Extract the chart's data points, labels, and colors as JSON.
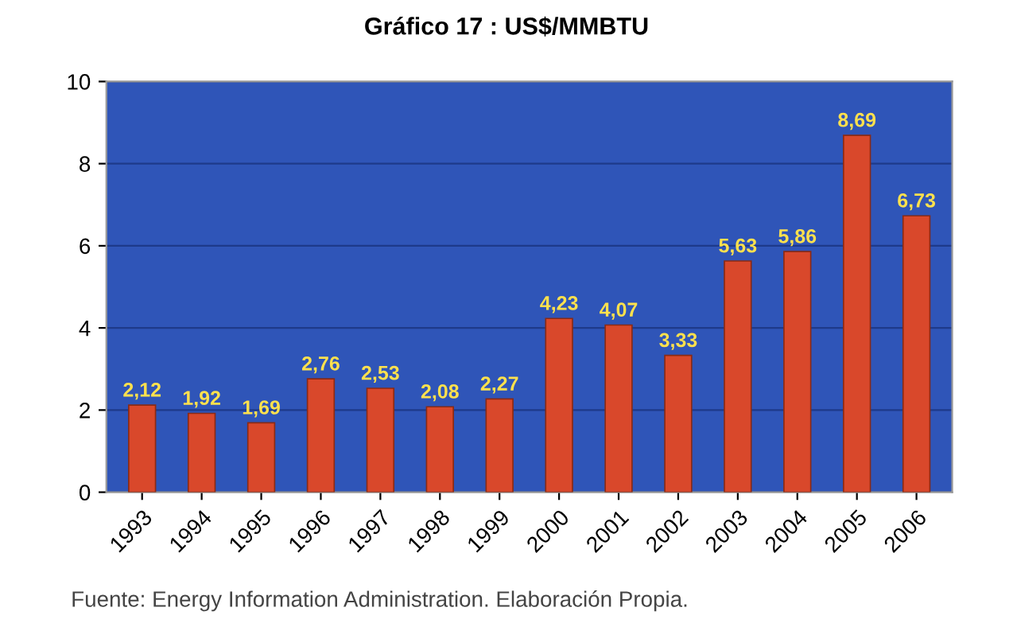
{
  "chart_data": {
    "type": "bar",
    "title": "Gráfico 17 : US$/MMBTU",
    "categories": [
      "1993",
      "1994",
      "1995",
      "1996",
      "1997",
      "1998",
      "1999",
      "2000",
      "2001",
      "2002",
      "2003",
      "2004",
      "2005",
      "2006"
    ],
    "values": [
      2.12,
      1.92,
      1.69,
      2.76,
      2.53,
      2.08,
      2.27,
      4.23,
      4.07,
      3.33,
      5.63,
      5.86,
      8.69,
      6.73
    ],
    "value_labels": [
      "2,12",
      "1,92",
      "1,69",
      "2,76",
      "2,53",
      "2,08",
      "2,27",
      "4,23",
      "4,07",
      "3,33",
      "5,63",
      "5,86",
      "8,69",
      "6,73"
    ],
    "color": "#d9482b",
    "ylim": [
      0,
      10
    ],
    "yticks": [
      0,
      2,
      4,
      6,
      8,
      10
    ],
    "grid": "y",
    "legend": false,
    "annotations": [
      "Fuente: Energy Information Administration. Elaboración Propia."
    ]
  }
}
